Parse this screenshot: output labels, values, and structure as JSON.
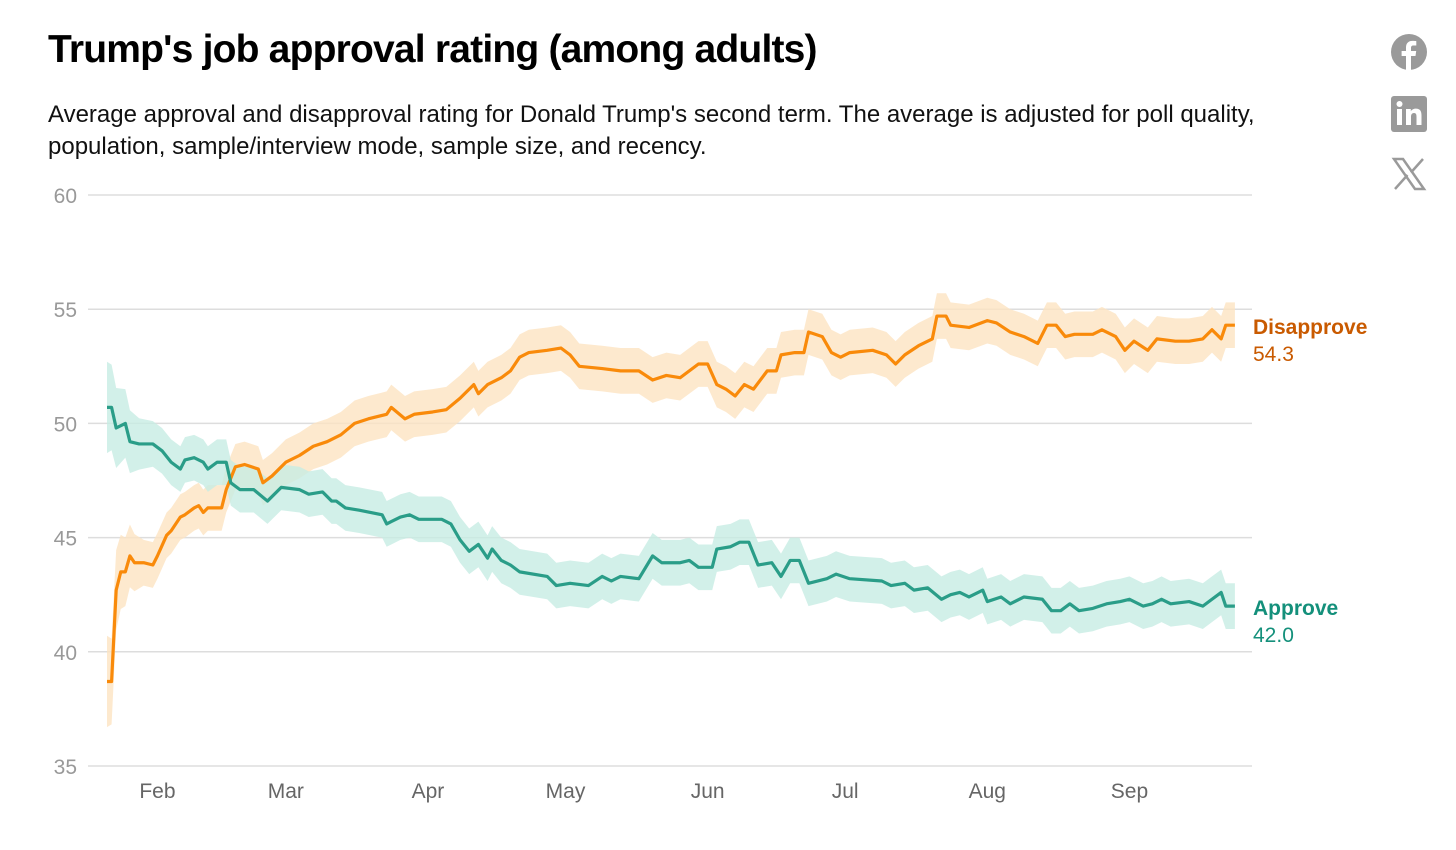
{
  "header": {
    "title": "Trump's job approval rating (among adults)",
    "subtitle": "Average approval and disapproval rating for Donald Trump's second term. The average is adjusted for poll quality, population, sample/interview mode, sample size, and recency."
  },
  "social": [
    {
      "icon": "facebook-icon"
    },
    {
      "icon": "linkedin-icon"
    },
    {
      "icon": "x-icon"
    }
  ],
  "chart_data": {
    "type": "line",
    "title": "Trump's job approval rating (among adults)",
    "xlabel": "",
    "ylabel": "",
    "x_unit": "days since start of term (Jan 20)",
    "ylim": [
      35,
      60
    ],
    "xlim": [
      0,
      246
    ],
    "yticks": [
      60,
      55,
      50,
      45,
      40,
      35
    ],
    "xticks": [
      {
        "label": "Feb",
        "day": 11
      },
      {
        "label": "Mar",
        "day": 39
      },
      {
        "label": "Apr",
        "day": 70
      },
      {
        "label": "May",
        "day": 100
      },
      {
        "label": "Jun",
        "day": 131
      },
      {
        "label": "Jul",
        "day": 161
      },
      {
        "label": "Aug",
        "day": 192
      },
      {
        "label": "Sep",
        "day": 223
      }
    ],
    "grid": true,
    "series": [
      {
        "name": "Disapprove",
        "final_value": "54.3",
        "color": "#f98a0a",
        "label_color": "#c95a00",
        "band_color": "#fde4c2",
        "band_halfwidth": 1.0,
        "x": [
          0,
          1,
          2,
          3,
          4,
          5,
          6,
          8,
          10,
          11,
          13,
          14,
          16,
          17,
          19,
          20,
          21,
          22,
          25,
          26,
          28,
          30,
          33,
          34,
          36,
          39,
          42,
          45,
          48,
          51,
          54,
          57,
          61,
          62,
          65,
          67,
          71,
          74,
          77,
          80,
          81,
          83,
          86,
          88,
          90,
          92,
          96,
          99,
          101,
          103,
          108,
          112,
          116,
          119,
          122,
          125,
          129,
          131,
          133,
          135,
          137,
          139,
          141,
          144,
          146,
          147,
          150,
          152,
          153,
          156,
          158,
          160,
          162,
          167,
          170,
          172,
          174,
          177,
          180,
          181,
          183,
          184,
          188,
          192,
          194,
          197,
          200,
          203,
          205,
          207,
          209,
          211,
          215,
          217,
          220,
          222,
          224,
          227,
          229,
          233,
          236,
          239,
          241,
          243,
          244,
          246
        ],
        "y": [
          38.7,
          38.7,
          42.7,
          43.5,
          43.5,
          44.2,
          43.9,
          43.9,
          43.8,
          44.2,
          45.1,
          45.3,
          45.9,
          46.0,
          46.3,
          46.4,
          46.1,
          46.3,
          46.3,
          47.1,
          48.1,
          48.2,
          48.0,
          47.4,
          47.7,
          48.3,
          48.6,
          49.0,
          49.2,
          49.5,
          50.0,
          50.2,
          50.4,
          50.7,
          50.2,
          50.4,
          50.5,
          50.6,
          51.1,
          51.7,
          51.3,
          51.7,
          52.0,
          52.3,
          52.9,
          53.1,
          53.2,
          53.3,
          53.0,
          52.5,
          52.4,
          52.3,
          52.3,
          51.9,
          52.1,
          52.0,
          52.6,
          52.6,
          51.7,
          51.5,
          51.2,
          51.7,
          51.5,
          52.3,
          52.3,
          53.0,
          53.1,
          53.1,
          54.0,
          53.8,
          53.1,
          52.9,
          53.1,
          53.2,
          53.0,
          52.6,
          53.0,
          53.4,
          53.7,
          54.7,
          54.7,
          54.3,
          54.2,
          54.5,
          54.4,
          54.0,
          53.8,
          53.5,
          54.3,
          54.3,
          53.8,
          53.9,
          53.9,
          54.1,
          53.8,
          53.2,
          53.6,
          53.2,
          53.7,
          53.6,
          53.6,
          53.7,
          54.1,
          53.7,
          54.3,
          54.3
        ]
      },
      {
        "name": "Approve",
        "final_value": "42.0",
        "color": "#2a9d88",
        "label_color": "#14907b",
        "band_color": "#c7ece3",
        "band_halfwidth": 1.0,
        "x": [
          0,
          1,
          2,
          4,
          5,
          7,
          10,
          12,
          14,
          16,
          17,
          19,
          21,
          22,
          24,
          26,
          27,
          29,
          32,
          35,
          38,
          42,
          44,
          47,
          49,
          50,
          52,
          55,
          60,
          61,
          62,
          64,
          66,
          68,
          73,
          75,
          77,
          79,
          81,
          83,
          84,
          86,
          88,
          90,
          96,
          98,
          101,
          105,
          108,
          110,
          112,
          116,
          119,
          121,
          125,
          127,
          129,
          132,
          133,
          136,
          138,
          140,
          142,
          145,
          147,
          149,
          151,
          153,
          157,
          159,
          162,
          169,
          171,
          174,
          176,
          179,
          182,
          184,
          186,
          188,
          191,
          192,
          195,
          197,
          200,
          204,
          206,
          208,
          210,
          212,
          215,
          218,
          221,
          223,
          226,
          228,
          230,
          232,
          236,
          239,
          241,
          243,
          244,
          246
        ],
        "y": [
          50.7,
          50.7,
          49.8,
          50.0,
          49.2,
          49.1,
          49.1,
          48.8,
          48.3,
          48.0,
          48.4,
          48.5,
          48.3,
          48.0,
          48.3,
          48.3,
          47.4,
          47.1,
          47.1,
          46.6,
          47.2,
          47.1,
          46.9,
          47.0,
          46.6,
          46.6,
          46.3,
          46.2,
          46.0,
          45.6,
          45.7,
          45.9,
          46.0,
          45.8,
          45.8,
          45.6,
          44.9,
          44.4,
          44.7,
          44.1,
          44.5,
          44.0,
          43.8,
          43.5,
          43.3,
          42.9,
          43.0,
          42.9,
          43.3,
          43.1,
          43.3,
          43.2,
          44.2,
          43.9,
          43.9,
          44.0,
          43.7,
          43.7,
          44.5,
          44.6,
          44.8,
          44.8,
          43.8,
          43.9,
          43.3,
          44.0,
          44.0,
          43.0,
          43.2,
          43.4,
          43.2,
          43.1,
          42.9,
          43.0,
          42.7,
          42.8,
          42.3,
          42.5,
          42.6,
          42.4,
          42.7,
          42.2,
          42.4,
          42.1,
          42.4,
          42.3,
          41.8,
          41.8,
          42.1,
          41.8,
          41.9,
          42.1,
          42.2,
          42.3,
          42.0,
          42.1,
          42.3,
          42.1,
          42.2,
          42.0,
          42.3,
          42.6,
          42.0,
          42.0
        ]
      }
    ]
  }
}
